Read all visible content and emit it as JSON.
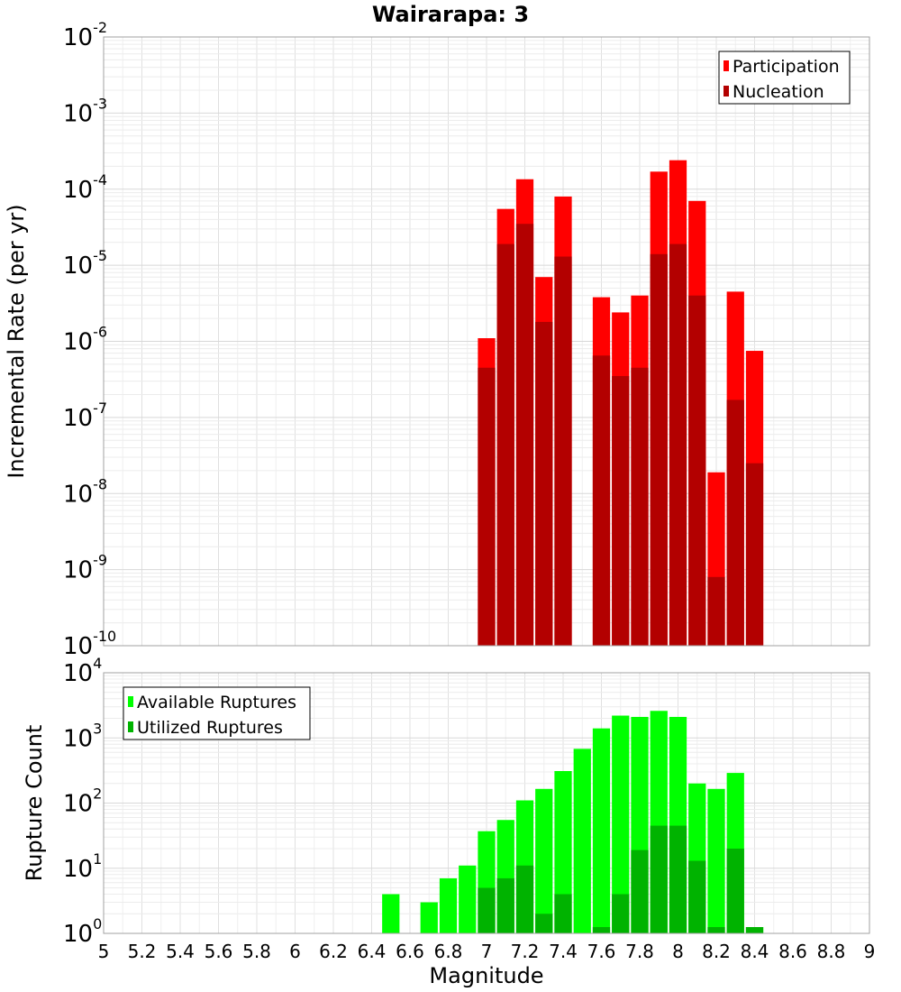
{
  "title": "Wairarapa: 3",
  "xlabel": "Magnitude",
  "chart_data": [
    {
      "type": "bar",
      "ylabel": "Incremental Rate (per yr)",
      "yscale": "log",
      "ylim": [
        1e-10,
        0.01
      ],
      "xlim": [
        5,
        9
      ],
      "y_tick_labels": [
        "10^-10",
        "10^-9",
        "10^-8",
        "10^-7",
        "10^-6",
        "10^-5",
        "10^-4",
        "10^-3",
        "10^-2"
      ],
      "legend": {
        "position": "top-right",
        "entries": [
          "Participation",
          "Nucleation"
        ]
      },
      "colors": {
        "Participation": "#ff0000",
        "Nucleation": "#b30000"
      },
      "x": [
        7.0,
        7.1,
        7.2,
        7.3,
        7.4,
        7.6,
        7.7,
        7.8,
        7.9,
        8.0,
        8.1,
        8.2,
        8.3,
        8.4
      ],
      "series": [
        {
          "name": "Participation",
          "values": [
            1.1e-06,
            5.5e-05,
            0.000135,
            7e-06,
            8e-05,
            3.8e-06,
            2.4e-06,
            4e-06,
            0.00017,
            0.00024,
            7e-05,
            1.9e-08,
            4.5e-06,
            7.5e-07
          ]
        },
        {
          "name": "Nucleation",
          "values": [
            4.5e-07,
            1.9e-05,
            3.5e-05,
            1.8e-06,
            1.3e-05,
            6.5e-07,
            3.5e-07,
            4.5e-07,
            1.4e-05,
            1.9e-05,
            4e-06,
            8e-10,
            1.7e-07,
            2.5e-08
          ]
        }
      ],
      "grid": true
    },
    {
      "type": "bar",
      "ylabel": "Rupture Count",
      "yscale": "log",
      "ylim": [
        1,
        10000.0
      ],
      "xlim": [
        5,
        9
      ],
      "y_tick_labels": [
        "10^0",
        "10^1",
        "10^2",
        "10^3",
        "10^4"
      ],
      "legend": {
        "position": "top-left",
        "entries": [
          "Available Ruptures",
          "Utilized Ruptures"
        ]
      },
      "colors": {
        "Available Ruptures": "#00ff00",
        "Utilized Ruptures": "#00b300"
      },
      "x": [
        6.5,
        6.7,
        6.8,
        6.9,
        7.0,
        7.1,
        7.2,
        7.3,
        7.4,
        7.5,
        7.6,
        7.7,
        7.8,
        7.9,
        8.0,
        8.1,
        8.2,
        8.3,
        8.4
      ],
      "series": [
        {
          "name": "Available Ruptures",
          "values": [
            4,
            3,
            7,
            11,
            37,
            55,
            110,
            165,
            310,
            680,
            1400,
            2200,
            2100,
            2600,
            2100,
            200,
            165,
            290,
            1
          ]
        },
        {
          "name": "Utilized Ruptures",
          "values": [
            null,
            null,
            null,
            null,
            5,
            7,
            11,
            2,
            4,
            null,
            1,
            4,
            19,
            45,
            45,
            13,
            1,
            20,
            1
          ]
        }
      ],
      "grid": true
    }
  ],
  "x_tick_labels": [
    "5",
    "5.2",
    "5.4",
    "5.6",
    "5.8",
    "6",
    "6.2",
    "6.4",
    "6.6",
    "6.8",
    "7",
    "7.2",
    "7.4",
    "7.6",
    "7.8",
    "8",
    "8.2",
    "8.4",
    "8.6",
    "8.8",
    "9"
  ]
}
